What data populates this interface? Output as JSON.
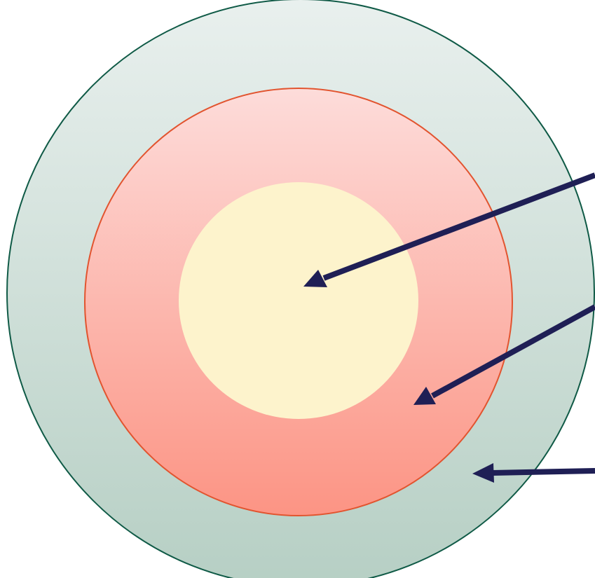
{
  "diagram": {
    "type": "concentric-circles",
    "rings": [
      {
        "name": "outer-circle",
        "fill_top": "#e9f0ee",
        "fill_bottom": "#b6cfc4",
        "stroke": "#0f5a46"
      },
      {
        "name": "middle-circle",
        "fill_top": "#fddcda",
        "fill_bottom": "#fc9484",
        "stroke": "#e2542f"
      },
      {
        "name": "inner-circle",
        "fill": "#fdf3cc"
      }
    ],
    "arrows": [
      {
        "name": "arrow-to-inner-circle",
        "color": "#1f1f55"
      },
      {
        "name": "arrow-to-middle-circle",
        "color": "#1f1f55"
      },
      {
        "name": "arrow-to-outer-circle",
        "color": "#1f1f55"
      }
    ]
  }
}
